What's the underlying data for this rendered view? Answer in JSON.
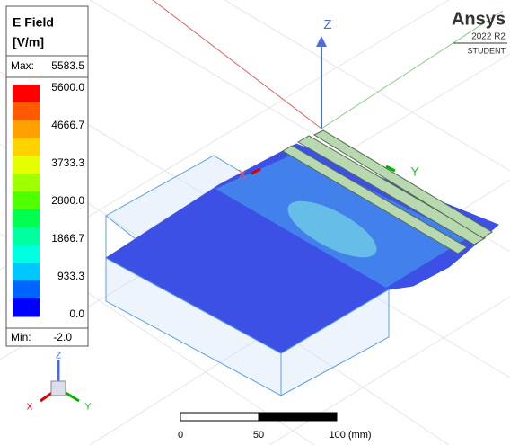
{
  "legend": {
    "title": "E Field",
    "unit": "[V/m]",
    "max_label": "Max:",
    "max_value": "5583.5",
    "min_label": "Min:",
    "min_value": "-2.0",
    "ticks": [
      "5600.0",
      "4666.7",
      "3733.3",
      "2800.0",
      "1866.7",
      "933.3",
      "0.0"
    ],
    "colors": [
      "#ff0000",
      "#ff5a00",
      "#ffa000",
      "#ffd200",
      "#e6ff00",
      "#a0ff00",
      "#50ff00",
      "#00ff50",
      "#00ffa0",
      "#00ffe0",
      "#00c8ff",
      "#0064ff",
      "#0000ff"
    ]
  },
  "brand": {
    "name": "Ansys",
    "version": "2022 R2",
    "edition": "STUDENT"
  },
  "scene": {
    "axis_z": "Z",
    "axis_y": "Y",
    "axis_x": "X"
  },
  "triad": {
    "z": "Z",
    "x": "X",
    "y": "Y"
  },
  "scale_bar": {
    "labels": [
      "0",
      "50",
      "100 (mm)"
    ]
  }
}
